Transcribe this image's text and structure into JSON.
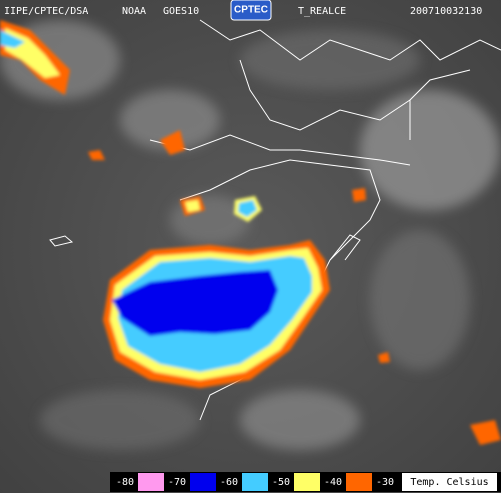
{
  "header": {
    "agency": "IIPE/CPTEC/DSA",
    "satellite_org": "NOAA",
    "satellite": "GOES10",
    "logo": "CPTEC",
    "product": "T_REALCE",
    "timestamp": "200710032130"
  },
  "legend": {
    "labels": [
      -80,
      -70,
      -60,
      -50,
      -40,
      -30
    ],
    "colors": [
      "#ff99ee",
      "#0000ee",
      "#44ccff",
      "#ffff66",
      "#ff6600"
    ],
    "unit": "Temp. Celsius"
  }
}
